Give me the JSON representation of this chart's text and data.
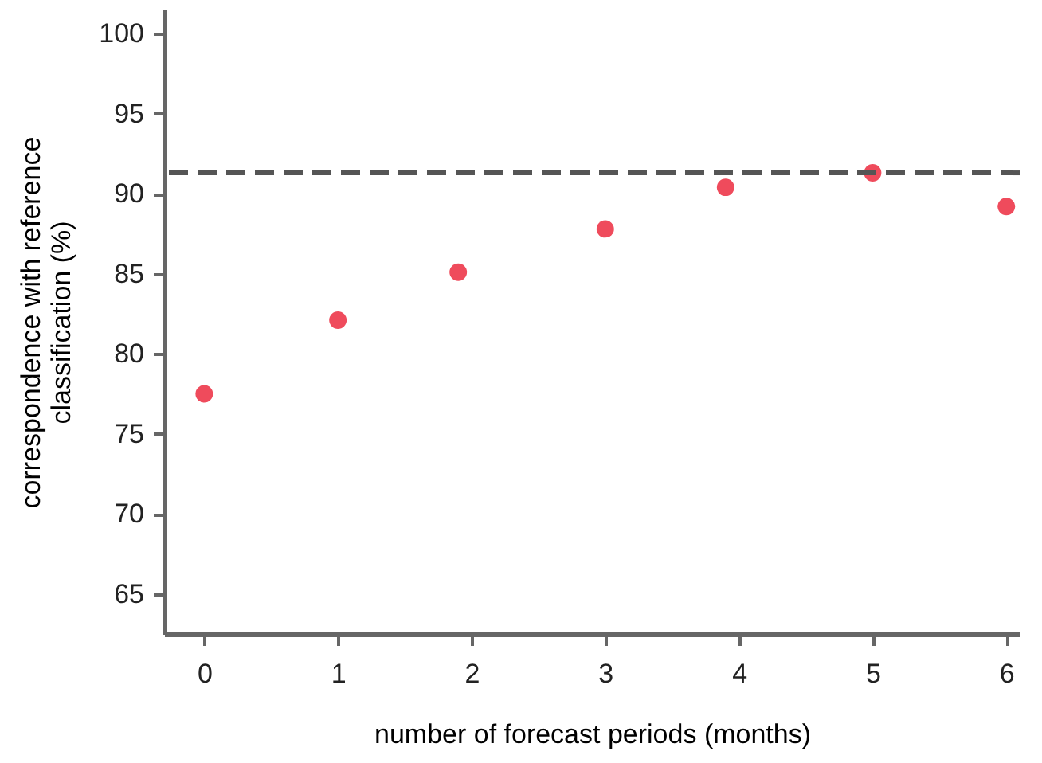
{
  "chart_data": {
    "type": "scatter",
    "xlabel": "number of forecast periods (months)",
    "ylabel": "correspondence with reference classification (%)",
    "x": [
      0,
      1,
      1.9,
      3,
      3.9,
      5,
      6
    ],
    "series": [
      {
        "color": "#ef4b5c",
        "values": [
          77.5,
          82.1,
          85.1,
          87.8,
          90.4,
          91.3,
          89.2
        ]
      }
    ],
    "xlim": [
      -0.3,
      6.1
    ],
    "xticks": [
      0,
      1,
      2,
      3,
      4,
      5,
      6
    ],
    "ylim": [
      62.5,
      101.5
    ],
    "yticks": [
      65,
      70,
      75,
      80,
      85,
      90,
      95,
      100
    ],
    "ref_lines": [
      {
        "axis": "y",
        "value": 91.3,
        "color": "#555555",
        "line_style": "dashed"
      }
    ],
    "grid": false,
    "marker": "circle"
  }
}
